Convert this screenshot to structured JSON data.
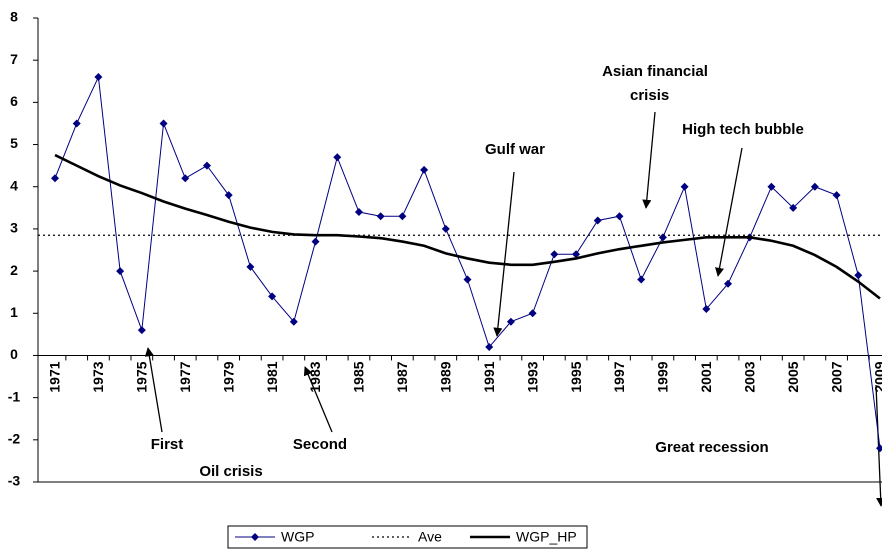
{
  "chart_data": {
    "type": "line",
    "categories": [
      "1971",
      null,
      "1973",
      null,
      "1975",
      null,
      "1977",
      null,
      "1979",
      null,
      "1981",
      null,
      "1983",
      null,
      "1985",
      null,
      "1987",
      null,
      "1989",
      null,
      "1991",
      null,
      "1993",
      null,
      "1995",
      null,
      "1997",
      null,
      "1999",
      null,
      "2001",
      null,
      "2003",
      null,
      "2005",
      null,
      "2007",
      null,
      "2009"
    ],
    "series": [
      {
        "name": "WGP",
        "color": "#000080",
        "line_style": "marker",
        "values": [
          4.2,
          5.5,
          6.6,
          2.0,
          0.6,
          5.5,
          4.2,
          4.5,
          3.8,
          2.1,
          1.4,
          0.8,
          2.7,
          4.7,
          3.4,
          3.3,
          3.3,
          4.4,
          3.0,
          1.8,
          0.2,
          0.8,
          1.0,
          2.4,
          2.4,
          3.2,
          3.3,
          1.8,
          2.8,
          4.0,
          1.1,
          1.7,
          2.8,
          4.0,
          3.5,
          4.0,
          3.8,
          1.9,
          -2.2
        ]
      },
      {
        "name": "Ave",
        "color": "#000000",
        "line_style": "dotted",
        "values": [
          2.85,
          2.85,
          2.85,
          2.85,
          2.85,
          2.85,
          2.85,
          2.85,
          2.85,
          2.85,
          2.85,
          2.85,
          2.85,
          2.85,
          2.85,
          2.85,
          2.85,
          2.85,
          2.85,
          2.85,
          2.85,
          2.85,
          2.85,
          2.85,
          2.85,
          2.85,
          2.85,
          2.85,
          2.85,
          2.85,
          2.85,
          2.85,
          2.85,
          2.85,
          2.85,
          2.85,
          2.85,
          2.85,
          2.85
        ]
      },
      {
        "name": "WGP_HP",
        "color": "#000000",
        "line_style": "thick",
        "values": [
          4.75,
          4.5,
          4.25,
          4.03,
          3.85,
          3.65,
          3.48,
          3.33,
          3.17,
          3.03,
          2.93,
          2.87,
          2.85,
          2.85,
          2.82,
          2.78,
          2.7,
          2.6,
          2.42,
          2.3,
          2.2,
          2.15,
          2.15,
          2.22,
          2.3,
          2.42,
          2.52,
          2.6,
          2.68,
          2.74,
          2.8,
          2.8,
          2.8,
          2.72,
          2.6,
          2.38,
          2.1,
          1.75,
          1.35
        ]
      }
    ],
    "ylim": [
      -3,
      8
    ],
    "yticks": [
      -3,
      -2,
      -1,
      0,
      1,
      2,
      3,
      4,
      5,
      6,
      7,
      8
    ],
    "grid": false,
    "annotations": [
      "First",
      "Oil crisis",
      "Second",
      "Gulf war",
      "Asian financial",
      "crisis",
      "High tech bubble",
      "Great recession"
    ]
  }
}
